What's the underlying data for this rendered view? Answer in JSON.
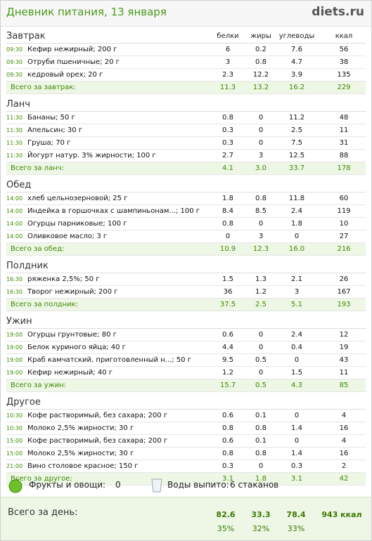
{
  "header": {
    "title": "Дневник питания, 13 января",
    "logo": "diets.ru"
  },
  "columns": [
    "белки",
    "жиры",
    "углеводы",
    "ккал"
  ],
  "sections": [
    {
      "title": "Завтрак",
      "rows": [
        {
          "time": "09:30",
          "name": "Кефир нежирный; 200 г",
          "values": [
            "6",
            "0.2",
            "7.6",
            "56"
          ]
        },
        {
          "time": "09:30",
          "name": "Отруби пшеничные; 20 г",
          "values": [
            "3",
            "0.8",
            "4.7",
            "38"
          ]
        },
        {
          "time": "09:30",
          "name": "кедровый орех; 20 г",
          "values": [
            "2.3",
            "12.2",
            "3.9",
            "135"
          ]
        }
      ],
      "total": {
        "label": "Всего за завтрак:",
        "values": [
          "11.3",
          "13.2",
          "16.2",
          "229"
        ]
      }
    },
    {
      "title": "Ланч",
      "rows": [
        {
          "time": "11:30",
          "name": "Бананы; 50 г",
          "values": [
            "0.8",
            "0",
            "11.2",
            "48"
          ]
        },
        {
          "time": "11:30",
          "name": "Апельсин; 30 г",
          "values": [
            "0.3",
            "0",
            "2.5",
            "11"
          ]
        },
        {
          "time": "11:30",
          "name": "Груша; 70 г",
          "values": [
            "0.3",
            "0",
            "7.5",
            "31"
          ]
        },
        {
          "time": "11:30",
          "name": "Йогурт натур. 3% жирности; 100 г",
          "values": [
            "2.7",
            "3",
            "12.5",
            "88"
          ]
        }
      ],
      "total": {
        "label": "Всего за ланч:",
        "values": [
          "4.1",
          "3.0",
          "33.7",
          "178"
        ]
      }
    },
    {
      "title": "Обед",
      "rows": [
        {
          "time": "14:00",
          "name": "хлеб цельнозерновой; 25 г",
          "values": [
            "1.8",
            "0.8",
            "11.8",
            "60"
          ]
        },
        {
          "time": "14:00",
          "name": "Индейка в горшочках с шампиньонам...; 100 г",
          "values": [
            "8.4",
            "8.5",
            "2.4",
            "119"
          ]
        },
        {
          "time": "14:00",
          "name": "Огурцы парниковые; 100 г",
          "values": [
            "0.8",
            "0",
            "1.8",
            "10"
          ]
        },
        {
          "time": "14:00",
          "name": "Оливковое масло; 3 г",
          "values": [
            "0",
            "3",
            "0",
            "27"
          ]
        }
      ],
      "total": {
        "label": "Всего за обед:",
        "values": [
          "10.9",
          "12.3",
          "16.0",
          "216"
        ]
      }
    },
    {
      "title": "Полдник",
      "rows": [
        {
          "time": "16:30",
          "name": "ряженка 2,5%; 50 г",
          "values": [
            "1.5",
            "1.3",
            "2.1",
            "26"
          ]
        },
        {
          "time": "16:30",
          "name": "Творог нежирный; 200 г",
          "values": [
            "36",
            "1.2",
            "3",
            "167"
          ]
        }
      ],
      "total": {
        "label": "Всего за полдник:",
        "values": [
          "37.5",
          "2.5",
          "5.1",
          "193"
        ]
      }
    },
    {
      "title": "Ужин",
      "rows": [
        {
          "time": "19:00",
          "name": "Огурцы грунтовые; 80 г",
          "values": [
            "0.6",
            "0",
            "2.4",
            "12"
          ]
        },
        {
          "time": "19:00",
          "name": "Белок куриного яйца; 40 г",
          "values": [
            "4.4",
            "0",
            "0.4",
            "19"
          ]
        },
        {
          "time": "19:00",
          "name": "Краб камчатский, приготовленный н...; 50 г",
          "values": [
            "9.5",
            "0.5",
            "0",
            "43"
          ]
        },
        {
          "time": "19:00",
          "name": "Кефир нежирный; 40 г",
          "values": [
            "1.2",
            "0",
            "1.5",
            "11"
          ]
        }
      ],
      "total": {
        "label": "Всего за ужин:",
        "values": [
          "15.7",
          "0.5",
          "4.3",
          "85"
        ]
      }
    },
    {
      "title": "Другое",
      "rows": [
        {
          "time": "10:30",
          "name": "Кофе растворимый, без сахара; 200 г",
          "values": [
            "0.6",
            "0.1",
            "0",
            "4"
          ]
        },
        {
          "time": "10:30",
          "name": "Молоко 2,5% жирности; 30 г",
          "values": [
            "0.8",
            "0.8",
            "1.4",
            "16"
          ]
        },
        {
          "time": "15:00",
          "name": "Кофе растворимый, без сахара; 200 г",
          "values": [
            "0.6",
            "0.1",
            "0",
            "4"
          ]
        },
        {
          "time": "15:00",
          "name": "Молоко 2,5% жирности; 30 г",
          "values": [
            "0.8",
            "0.8",
            "1.4",
            "16"
          ]
        },
        {
          "time": "21:00",
          "name": "Вино столовое красное; 150 г",
          "values": [
            "0.3",
            "0",
            "0.3",
            "2"
          ]
        }
      ],
      "total": {
        "label": "Всего за другое:",
        "values": [
          "3.1",
          "1.8",
          "3.1",
          "42"
        ]
      }
    }
  ],
  "extras": {
    "fruits_label": "Фрукты и овощи:",
    "fruits_value": "0",
    "water_label": "Воды выпито:",
    "water_value": "6 стаканов"
  },
  "day_total": {
    "label": "Всего за день:",
    "values": [
      "82.6",
      "33.3",
      "78.4",
      "943 ккал"
    ],
    "percents": [
      "35%",
      "32%",
      "33%"
    ]
  }
}
